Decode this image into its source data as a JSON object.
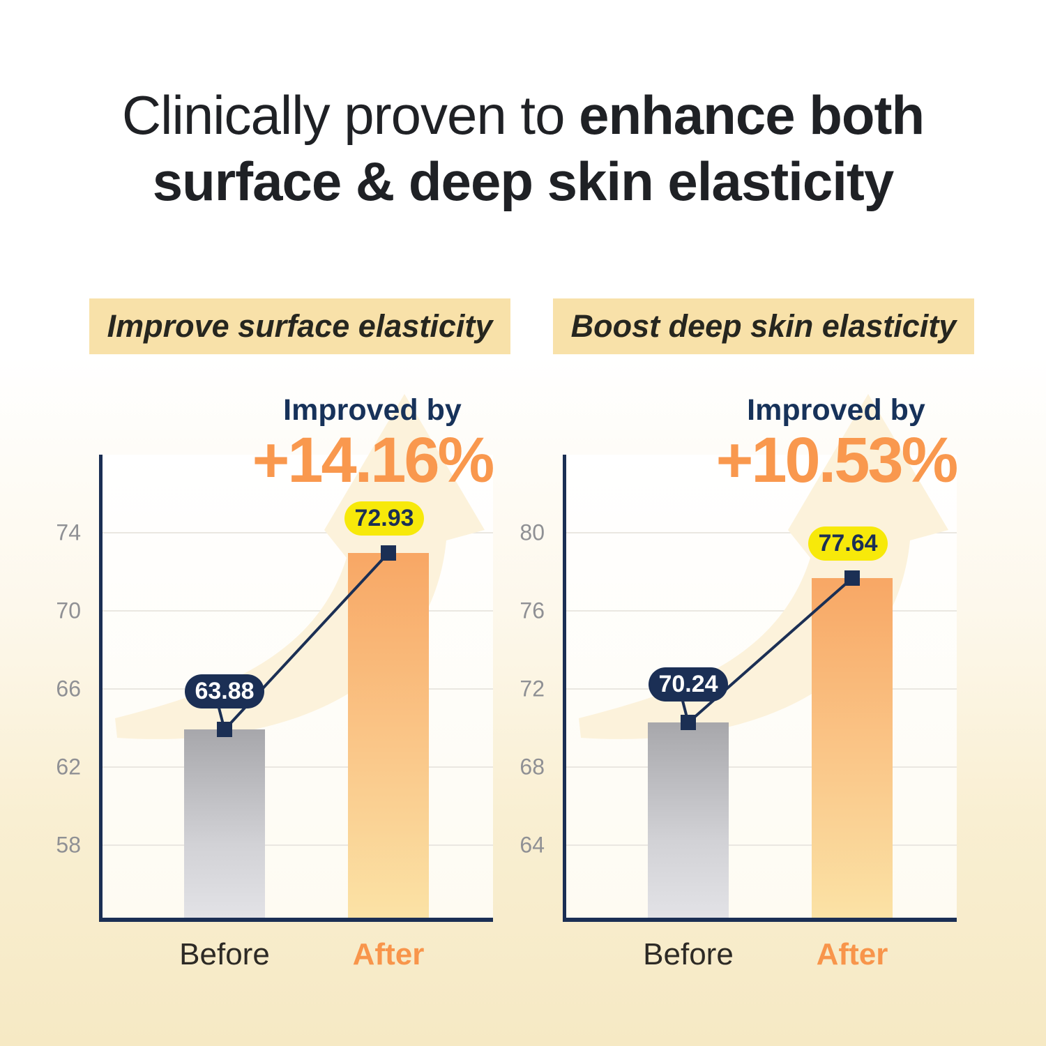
{
  "title": {
    "line1_regular": "Clinically proven to",
    "line1_bold": "enhance both",
    "line2_bold": "surface & deep skin elasticity"
  },
  "colors": {
    "accent_orange": "#f9984e",
    "navy": "#1b2f54",
    "band_background": "#f8e1a9",
    "yellow_pill": "#f7e90a",
    "gray_bar": "#a7a7ab",
    "orange_bar": "#f8a765",
    "watermark_arrow": "#fcf2db",
    "gridline": "#eae7e1",
    "tick_label": "#8f9094"
  },
  "chart_data": [
    {
      "type": "bar",
      "header": "Improve surface elasticity",
      "improved_label": "Improved by",
      "improved_value": "+14.16%",
      "categories": [
        "Before",
        "After"
      ],
      "values": [
        63.88,
        72.93
      ],
      "value_labels": [
        "63.88",
        "72.93"
      ],
      "yticks": [
        74,
        70,
        66,
        62,
        58
      ],
      "ylim": [
        54,
        78
      ],
      "grid": true,
      "legend": false
    },
    {
      "type": "bar",
      "header": "Boost deep skin elasticity",
      "improved_label": "Improved by",
      "improved_value": "+10.53%",
      "categories": [
        "Before",
        "After"
      ],
      "values": [
        70.24,
        77.64
      ],
      "value_labels": [
        "70.24",
        "77.64"
      ],
      "yticks": [
        80,
        76,
        72,
        68,
        64
      ],
      "ylim": [
        60,
        84
      ],
      "grid": true,
      "legend": false
    }
  ]
}
